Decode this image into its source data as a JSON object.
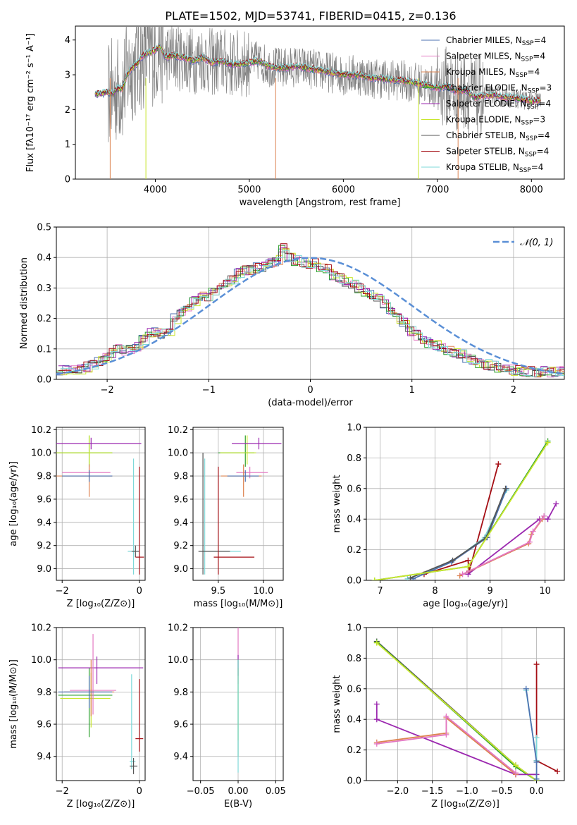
{
  "chart_data": [
    {
      "id": "spectrum",
      "type": "line",
      "title": "PLATE=1502, MJD=53741, FIBERID=0415, z=0.136",
      "xlabel": "wavelength [Angstrom, rest frame]",
      "ylabel": "Flux [fλ10⁻¹⁷ erg cm⁻² s⁻¹ A⁻¹]",
      "xlim": [
        3150,
        8350
      ],
      "ylim": [
        0,
        4.4
      ],
      "xticks": [
        4000,
        5000,
        6000,
        7000,
        8000
      ],
      "yticks": [
        0,
        1,
        2,
        3,
        4
      ],
      "legend": "top-right",
      "series": [
        {
          "name": "Chabrier MILES, NSSP=4",
          "color": "#4c72b0"
        },
        {
          "name": "Salpeter MILES, NSSP=4",
          "color": "#e377c2"
        },
        {
          "name": "Kroupa MILES, NSSP=4",
          "color": "#dd8452"
        },
        {
          "name": "Chabrier ELODIE, NSSP=3",
          "color": "#2ca02c"
        },
        {
          "name": "Salpeter ELODIE, NSSP=4",
          "color": "#9b27af"
        },
        {
          "name": "Kroupa ELODIE, NSSP=3",
          "color": "#c8e62e"
        },
        {
          "name": "Chabrier STELIB, NSSP=4",
          "color": "#555555"
        },
        {
          "name": "Salpeter STELIB, NSSP=4",
          "color": "#a50f15"
        },
        {
          "name": "Kroupa STELIB, NSSP=4",
          "color": "#7ed9d9"
        }
      ],
      "data_color": "#808080",
      "model_x": [
        3400,
        3500,
        3550,
        3600,
        3650,
        3700,
        3750,
        3800,
        3850,
        3900,
        3950,
        4000,
        4050,
        4100,
        4200,
        4300,
        4400,
        4500,
        4600,
        4700,
        4800,
        4900,
        5000,
        5100,
        5200,
        5300,
        5400,
        5500,
        5600,
        5700,
        5800,
        5900,
        6000,
        6100,
        6200,
        6300,
        6400,
        6500,
        6600,
        6700,
        6800,
        6900,
        7000,
        7100,
        7200,
        7300,
        7400,
        7500,
        7600,
        7700,
        7800,
        7900,
        8000,
        8100
      ],
      "model_y": [
        2.45,
        2.5,
        2.45,
        2.6,
        2.6,
        3.0,
        3.2,
        3.3,
        3.5,
        3.6,
        3.65,
        3.7,
        3.85,
        3.5,
        3.55,
        3.5,
        3.4,
        3.5,
        3.35,
        3.4,
        3.3,
        3.3,
        3.35,
        3.4,
        3.25,
        3.2,
        3.2,
        3.25,
        3.2,
        3.15,
        3.1,
        3.05,
        3.0,
        3.0,
        2.98,
        2.9,
        2.9,
        2.85,
        2.85,
        2.8,
        2.75,
        2.7,
        2.62,
        2.68,
        2.52,
        2.55,
        2.35,
        2.4,
        2.42,
        2.35,
        2.35,
        2.3,
        2.25,
        2.25
      ]
    },
    {
      "id": "residuals",
      "type": "line",
      "xlabel": "(data-model)/error",
      "ylabel": "Normed distribution",
      "xlim": [
        -2.5,
        2.5
      ],
      "ylim": [
        0,
        0.5
      ],
      "xticks": [
        -2,
        -1,
        0,
        1,
        2
      ],
      "yticks": [
        0.0,
        0.1,
        0.2,
        0.3,
        0.4,
        0.5
      ],
      "legend": "top-right",
      "reference_curve": {
        "name": "𝒩(0, 1)",
        "color": "#5a8fd6",
        "mean": 0,
        "sigma": 1
      },
      "bin_edges_start": -2.5,
      "bin_width": 0.1,
      "histogram_values": [
        0.03,
        0.03,
        0.03,
        0.035,
        0.04,
        0.05,
        0.06,
        0.07,
        0.085,
        0.1,
        0.09,
        0.1,
        0.11,
        0.13,
        0.15,
        0.155,
        0.15,
        0.16,
        0.2,
        0.22,
        0.24,
        0.255,
        0.27,
        0.275,
        0.29,
        0.3,
        0.315,
        0.33,
        0.35,
        0.36,
        0.36,
        0.365,
        0.37,
        0.38,
        0.39,
        0.43,
        0.4,
        0.39,
        0.385,
        0.38,
        0.38,
        0.37,
        0.36,
        0.34,
        0.33,
        0.32,
        0.31,
        0.3,
        0.29,
        0.28,
        0.265,
        0.25,
        0.22,
        0.2,
        0.185,
        0.16,
        0.145,
        0.13,
        0.12,
        0.11,
        0.1,
        0.095,
        0.09,
        0.08,
        0.07,
        0.065,
        0.055,
        0.05,
        0.045,
        0.04,
        0.035,
        0.03,
        0.03,
        0.025,
        0.025,
        0.025,
        0.025,
        0.025,
        0.025,
        0.025
      ]
    },
    {
      "id": "age-vs-Z",
      "type": "scatter",
      "xlabel": "Z [log₁₀(Z/Z⊙)]",
      "ylabel": "age  [log₁₀(age/yr)]",
      "xlim": [
        -2.15,
        0.15
      ],
      "ylim": [
        8.9,
        10.22
      ],
      "xticks": [
        -2,
        0
      ],
      "yticks": [
        9.0,
        9.2,
        9.4,
        9.6,
        9.8,
        10.0,
        10.2
      ],
      "points": [
        {
          "x": -1.3,
          "y": 10.0,
          "xerr": [
            0.9,
            0.6
          ],
          "yerr": [
            0.12,
            0.15
          ],
          "color": "#2ca02c"
        },
        {
          "x": -1.3,
          "y": 10.0,
          "xerr": [
            0.9,
            0.6
          ],
          "yerr": [
            0.1,
            0.15
          ],
          "color": "#c8e62e"
        },
        {
          "x": -1.25,
          "y": 10.08,
          "xerr": [
            0.9,
            1.3
          ],
          "yerr": [
            0.05,
            0.05
          ],
          "color": "#9b27af"
        },
        {
          "x": -1.3,
          "y": 9.83,
          "xerr": [
            0.7,
            0.55
          ],
          "yerr": [
            0.05,
            0.05
          ],
          "color": "#e377c2"
        },
        {
          "x": -1.3,
          "y": 9.8,
          "xerr": [
            0.9,
            0.6
          ],
          "yerr": [
            0.18,
            0.1
          ],
          "color": "#dd8452"
        },
        {
          "x": -1.3,
          "y": 9.8,
          "xerr": [
            0.7,
            0.6
          ],
          "yerr": [
            0.05,
            0.05
          ],
          "color": "#4c72b0"
        },
        {
          "x": -0.15,
          "y": 9.15,
          "xerr": [
            0.15,
            0.15
          ],
          "yerr": [
            0.2,
            0.8
          ],
          "color": "#7ed9d9"
        },
        {
          "x": -0.1,
          "y": 9.15,
          "xerr": [
            0.1,
            0.1
          ],
          "yerr": [
            0.05,
            0.05
          ],
          "color": "#555555"
        },
        {
          "x": 0.0,
          "y": 9.1,
          "xerr": [
            0.1,
            0.12
          ],
          "yerr": [
            0.15,
            0.78
          ],
          "color": "#a50f15"
        }
      ]
    },
    {
      "id": "age-vs-mass",
      "type": "scatter",
      "xlabel": "mass [log₁₀(M/M⊙)]",
      "ylabel": "",
      "xlim": [
        9.22,
        10.22
      ],
      "ylim": [
        8.9,
        10.22
      ],
      "xticks": [
        9.5,
        10.0
      ],
      "yticks": [
        9.0,
        9.2,
        9.4,
        9.6,
        9.8,
        10.0,
        10.2
      ],
      "points": [
        {
          "x": 9.8,
          "y": 10.0,
          "xerr": [
            0.3,
            0.1
          ],
          "yerr": [
            0.12,
            0.15
          ],
          "color": "#2ca02c"
        },
        {
          "x": 9.82,
          "y": 10.0,
          "xerr": [
            0.3,
            0.1
          ],
          "yerr": [
            0.1,
            0.15
          ],
          "color": "#c8e62e"
        },
        {
          "x": 9.95,
          "y": 10.08,
          "xerr": [
            0.3,
            0.25
          ],
          "yerr": [
            0.05,
            0.05
          ],
          "color": "#9b27af"
        },
        {
          "x": 9.85,
          "y": 9.83,
          "xerr": [
            0.15,
            0.2
          ],
          "yerr": [
            0.05,
            0.05
          ],
          "color": "#e377c2"
        },
        {
          "x": 9.78,
          "y": 9.8,
          "xerr": [
            0.25,
            0.2
          ],
          "yerr": [
            0.18,
            0.1
          ],
          "color": "#dd8452"
        },
        {
          "x": 9.8,
          "y": 9.8,
          "xerr": [
            0.2,
            0.15
          ],
          "yerr": [
            0.05,
            0.05
          ],
          "color": "#4c72b0"
        },
        {
          "x": 9.35,
          "y": 9.15,
          "xerr": [
            0.05,
            0.4
          ],
          "yerr": [
            0.2,
            0.8
          ],
          "color": "#7ed9d9"
        },
        {
          "x": 9.33,
          "y": 9.15,
          "xerr": [
            0.05,
            0.3
          ],
          "yerr": [
            0.2,
            0.85
          ],
          "color": "#555555"
        },
        {
          "x": 9.5,
          "y": 9.1,
          "xerr": [
            0.05,
            0.4
          ],
          "yerr": [
            0.15,
            0.78
          ],
          "color": "#a50f15"
        }
      ]
    },
    {
      "id": "massweight-vs-age",
      "type": "line",
      "xlabel": "age  [log₁₀(age/yr)]",
      "ylabel": "mass weight",
      "xlim": [
        6.75,
        10.35
      ],
      "ylim": [
        0,
        1.0
      ],
      "xticks": [
        7,
        8,
        9,
        10
      ],
      "yticks": [
        0.0,
        0.2,
        0.4,
        0.6,
        0.8,
        1.0
      ],
      "series": [
        {
          "color": "#a50f15",
          "x": [
            7.8,
            8.6,
            8.62,
            9.15
          ],
          "y": [
            0.04,
            0.13,
            0.06,
            0.76
          ]
        },
        {
          "color": "#7ed9d9",
          "x": [
            7.5,
            8.3,
            8.9,
            9.3
          ],
          "y": [
            0.01,
            0.12,
            0.28,
            0.59
          ]
        },
        {
          "color": "#4c72b0",
          "x": [
            7.6,
            8.3,
            8.95,
            9.3
          ],
          "y": [
            0.01,
            0.12,
            0.28,
            0.6
          ]
        },
        {
          "color": "#555555",
          "x": [
            7.55,
            8.32,
            8.93,
            9.28
          ],
          "y": [
            0.015,
            0.13,
            0.28,
            0.6
          ]
        },
        {
          "color": "#2ca02c",
          "x": [
            6.9,
            8.6,
            10.05
          ],
          "y": [
            0.0,
            0.09,
            0.91
          ]
        },
        {
          "color": "#c8e62e",
          "x": [
            6.9,
            8.6,
            10.05
          ],
          "y": [
            0.0,
            0.09,
            0.9
          ]
        },
        {
          "color": "#9b27af",
          "x": [
            8.6,
            9.9,
            10.05,
            10.2
          ],
          "y": [
            0.04,
            0.4,
            0.4,
            0.5
          ]
        },
        {
          "color": "#dd8452",
          "x": [
            8.45,
            9.7,
            9.75,
            9.95
          ],
          "y": [
            0.03,
            0.24,
            0.3,
            0.4
          ]
        },
        {
          "color": "#e377c2",
          "x": [
            8.5,
            9.72,
            9.78,
            9.98
          ],
          "y": [
            0.04,
            0.25,
            0.32,
            0.42
          ]
        }
      ]
    },
    {
      "id": "mass-vs-Z",
      "type": "scatter",
      "xlabel": "Z [log₁₀(Z/Z⊙)]",
      "ylabel": "mass [log₁₀(M/M⊙)]",
      "xlim": [
        -2.15,
        0.15
      ],
      "ylim": [
        9.25,
        10.2
      ],
      "xticks": [
        -2,
        0
      ],
      "yticks": [
        9.4,
        9.6,
        9.8,
        10.0,
        10.2
      ],
      "points": [
        {
          "x": -1.3,
          "y": 9.78,
          "xerr": [
            0.8,
            0.6
          ],
          "yerr": [
            0.26,
            0.17
          ],
          "color": "#2ca02c"
        },
        {
          "x": -1.25,
          "y": 9.76,
          "xerr": [
            0.8,
            0.5
          ],
          "yerr": [
            0.18,
            0.16
          ],
          "color": "#c8e62e"
        },
        {
          "x": -1.1,
          "y": 9.95,
          "xerr": [
            1.0,
            1.2
          ],
          "yerr": [
            0.1,
            0.07
          ],
          "color": "#9b27af"
        },
        {
          "x": -1.2,
          "y": 9.81,
          "xerr": [
            0.6,
            0.6
          ],
          "yerr": [
            0.15,
            0.35
          ],
          "color": "#e377c2"
        },
        {
          "x": -1.25,
          "y": 9.8,
          "xerr": [
            0.7,
            0.6
          ],
          "yerr": [
            0.15,
            0.2
          ],
          "color": "#dd8452"
        },
        {
          "x": -1.3,
          "y": 9.8,
          "xerr": [
            0.8,
            0.6
          ],
          "yerr": [
            0.1,
            0.1
          ],
          "color": "#4c72b0"
        },
        {
          "x": -0.2,
          "y": 9.37,
          "xerr": [
            0.05,
            0.1
          ],
          "yerr": [
            0.05,
            0.54
          ],
          "color": "#7ed9d9"
        },
        {
          "x": -0.15,
          "y": 9.34,
          "xerr": [
            0.1,
            0.1
          ],
          "yerr": [
            0.05,
            0.05
          ],
          "color": "#555555"
        },
        {
          "x": 0.0,
          "y": 9.51,
          "xerr": [
            0.1,
            0.1
          ],
          "yerr": [
            0.08,
            0.37
          ],
          "color": "#a50f15"
        }
      ]
    },
    {
      "id": "mass-vs-ebv",
      "type": "scatter",
      "xlabel": "E(B-V)",
      "ylabel": "",
      "xlim": [
        -0.06,
        0.06
      ],
      "ylim": [
        9.25,
        10.2
      ],
      "xticks": [
        -0.05,
        0.0,
        0.05
      ],
      "yticks": [
        9.4,
        9.6,
        9.8,
        10.0,
        10.2
      ],
      "points": [
        {
          "x": 0.0,
          "y": 9.95,
          "yerr": [
            0.1,
            0.25
          ],
          "color": "#e377c2"
        },
        {
          "x": 0.0,
          "y": 9.95,
          "yerr": [
            0.05,
            0.08
          ],
          "color": "#9b27af"
        },
        {
          "x": 0.0,
          "y": 9.8,
          "yerr": [
            0.3,
            0.15
          ],
          "color": "#c8e62e"
        },
        {
          "x": 0.0,
          "y": 9.8,
          "yerr": [
            0.4,
            0.2
          ],
          "color": "#2ca02c"
        },
        {
          "x": 0.0,
          "y": 9.8,
          "yerr": [
            0.5,
            0.2
          ],
          "color": "#7ed9d9"
        }
      ]
    },
    {
      "id": "massweight-vs-Z",
      "type": "line",
      "xlabel": "Z [log₁₀(Z/Z⊙)]",
      "ylabel": "mass weight",
      "xlim": [
        -2.45,
        0.4
      ],
      "ylim": [
        0,
        1.0
      ],
      "xticks": [
        -2.0,
        -1.5,
        -1.0,
        -0.5,
        0.0
      ],
      "yticks": [
        0.0,
        0.2,
        0.4,
        0.6,
        0.8,
        1.0
      ],
      "series": [
        {
          "color": "#555555",
          "x": [
            -2.3,
            -0.3,
            0.0
          ],
          "y": [
            0.91,
            0.1,
            0.0
          ]
        },
        {
          "color": "#2ca02c",
          "x": [
            -2.3,
            -0.3,
            0.0
          ],
          "y": [
            0.905,
            0.09,
            0.0
          ]
        },
        {
          "color": "#c8e62e",
          "x": [
            -2.3,
            -0.3,
            0.0
          ],
          "y": [
            0.9,
            0.1,
            0.0
          ]
        },
        {
          "color": "#9b27af",
          "x": [
            -2.3,
            -2.3,
            -0.3,
            0.0
          ],
          "y": [
            0.5,
            0.4,
            0.04,
            0.04
          ]
        },
        {
          "color": "#dd8452",
          "x": [
            -2.3,
            -1.3,
            -1.3,
            -0.3
          ],
          "y": [
            0.25,
            0.31,
            0.41,
            0.04
          ]
        },
        {
          "color": "#e377c2",
          "x": [
            -2.3,
            -1.3,
            -1.3,
            -0.3
          ],
          "y": [
            0.24,
            0.3,
            0.42,
            0.05
          ]
        },
        {
          "color": "#a50f15",
          "x": [
            0.0,
            0.0,
            0.3
          ],
          "y": [
            0.76,
            0.13,
            0.06
          ]
        },
        {
          "color": "#7ed9d9",
          "x": [
            -0.15,
            0.0,
            0.0
          ],
          "y": [
            0.59,
            0.13,
            0.28
          ]
        },
        {
          "color": "#4c72b0",
          "x": [
            -0.15,
            0.0,
            0.0
          ],
          "y": [
            0.6,
            0.12,
            0.01
          ]
        }
      ]
    }
  ]
}
